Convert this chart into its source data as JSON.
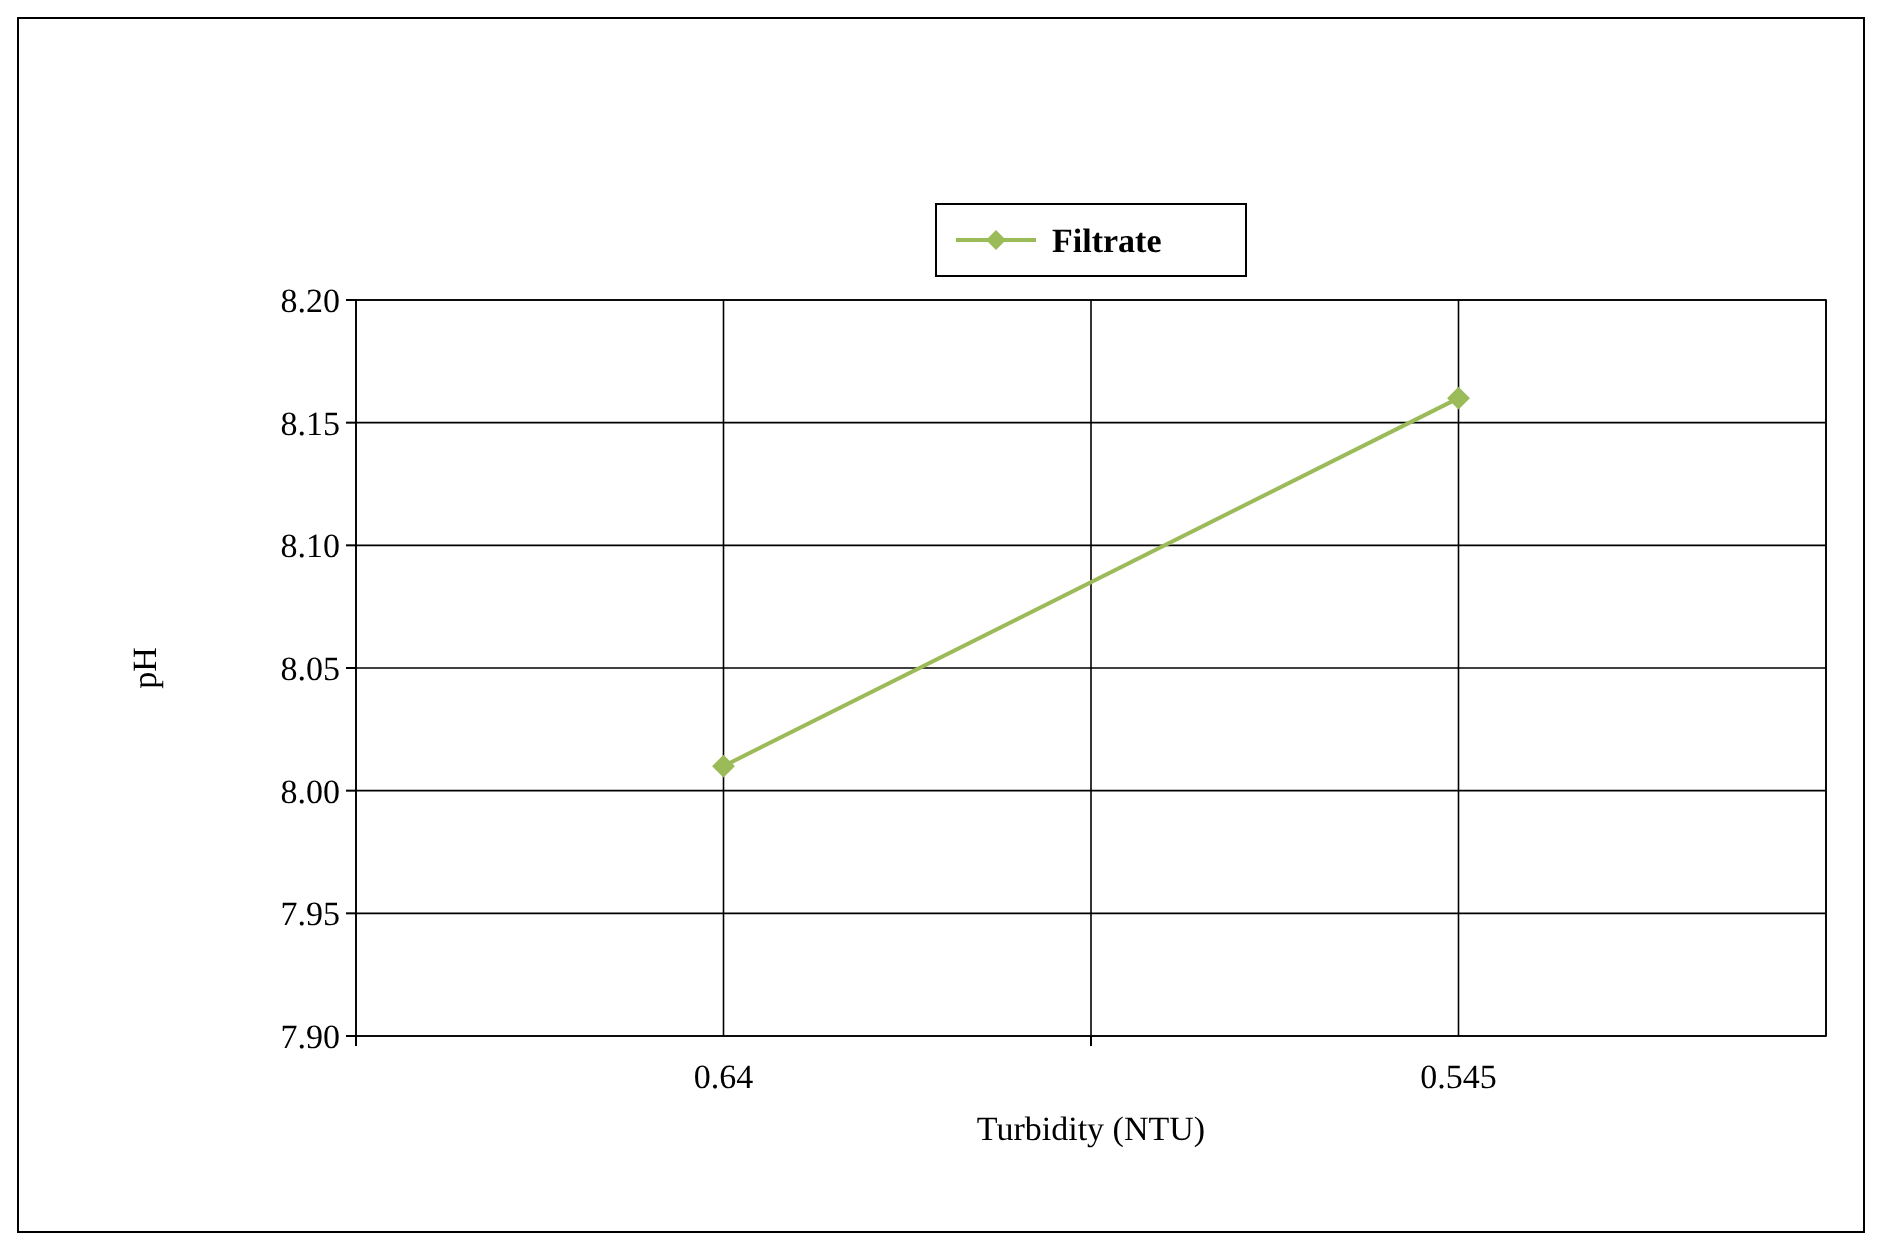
{
  "chart_data": {
    "type": "line",
    "xlabel": "Turbidity (NTU)",
    "ylabel": "pH",
    "categories": [
      "0.64",
      "0.545"
    ],
    "series": [
      {
        "name": "Filtrate",
        "color": "#9bbb59",
        "values": [
          8.01,
          8.16
        ]
      }
    ],
    "ylim": [
      7.9,
      8.2
    ],
    "yticks": [
      {
        "value": 7.9,
        "label": "7.90"
      },
      {
        "value": 7.95,
        "label": "7.95"
      },
      {
        "value": 8.0,
        "label": "8.00"
      },
      {
        "value": 8.05,
        "label": "8.05"
      },
      {
        "value": 8.1,
        "label": "8.10"
      },
      {
        "value": 8.15,
        "label": "8.15"
      },
      {
        "value": 8.2,
        "label": "8.20"
      }
    ],
    "grid": true,
    "legend": "top",
    "marker": "diamond",
    "line_style": "solid"
  }
}
